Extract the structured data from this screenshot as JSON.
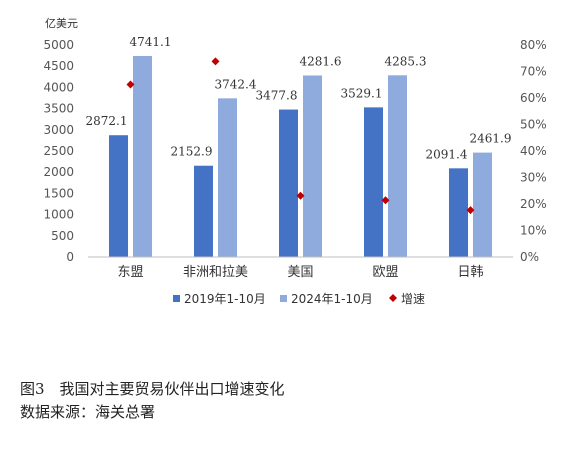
{
  "chart_data": {
    "type": "bar",
    "categories": [
      "东盟",
      "非洲和拉美",
      "美国",
      "欧盟",
      "日韩"
    ],
    "series": [
      {
        "name": "2019年1-10月",
        "values": [
          2872.1,
          2152.9,
          3477.8,
          3529.1,
          2091.4
        ],
        "color": "#4472C4"
      },
      {
        "name": "2024年1-10月",
        "values": [
          4741.1,
          3742.4,
          4281.6,
          4285.3,
          2461.9
        ],
        "color": "#8FAADC"
      }
    ],
    "secondary_series": {
      "name": "增速",
      "type": "scatter",
      "marker": "diamond",
      "color": "#C00000",
      "values": [
        65.1,
        73.8,
        23.1,
        21.4,
        17.7
      ]
    },
    "y_unit": "亿美元",
    "ylim": [
      0,
      5000
    ],
    "yticks": [
      0,
      500,
      1000,
      1500,
      2000,
      2500,
      3000,
      3500,
      4000,
      4500,
      5000
    ],
    "y2lim": [
      0,
      80
    ],
    "y2ticks": [
      "0%",
      "10%",
      "20%",
      "30%",
      "40%",
      "50%",
      "60%",
      "70%",
      "80%"
    ],
    "legend_position": "bottom",
    "grid": false
  },
  "caption": {
    "line1": "图3　我国对主要贸易伙伴出口增速变化",
    "line2": "数据来源：海关总署"
  }
}
